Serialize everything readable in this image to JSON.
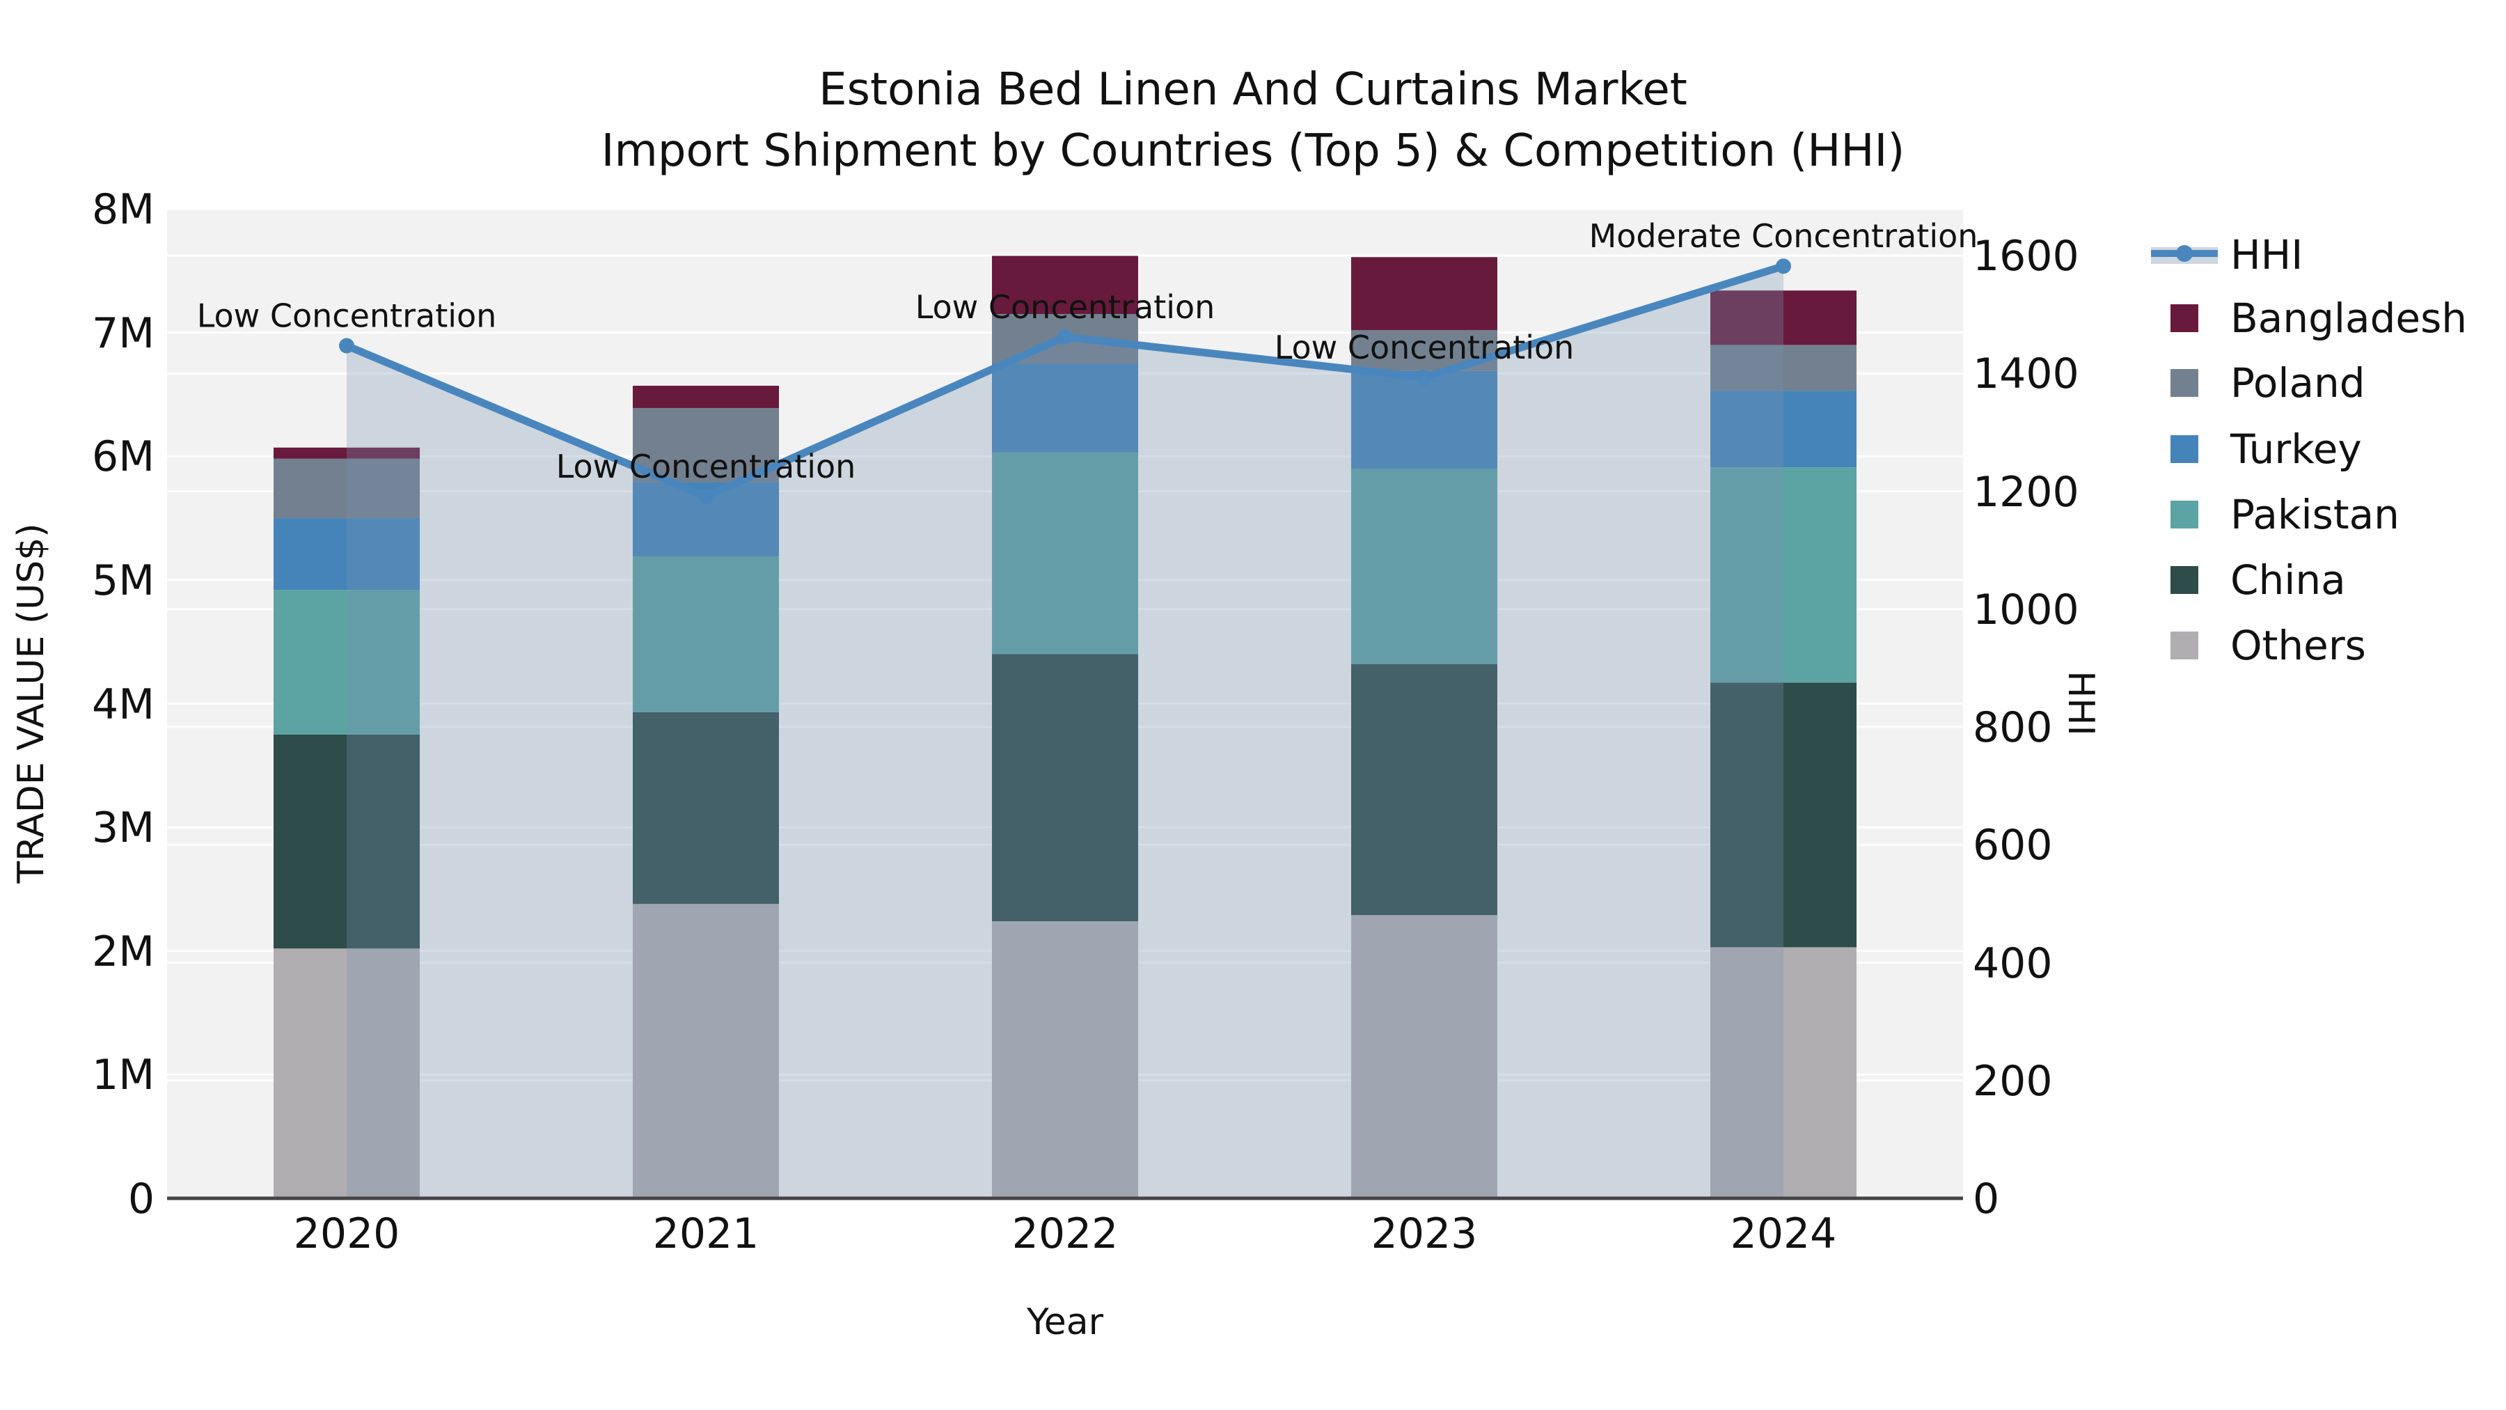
{
  "title": {
    "line1": "Estonia Bed Linen And Curtains Market",
    "line2": "Import Shipment by Countries (Top 5) & Competition (HHI)"
  },
  "chart_data": {
    "type": "bar",
    "subtype": "stacked-bar-with-line-overlay",
    "title": "Estonia Bed Linen And Curtains Market\nImport Shipment by Countries (Top 5) & Competition (HHI)",
    "categories": [
      "2020",
      "2021",
      "2022",
      "2023",
      "2024"
    ],
    "value_unit": "M US$",
    "stack_order": "bottom-to-top",
    "series": [
      {
        "name": "Others",
        "color": "#B0AEB0",
        "values": [
          2.02,
          2.38,
          2.24,
          2.29,
          2.03
        ]
      },
      {
        "name": "China",
        "color": "#2E4C49",
        "values": [
          1.73,
          1.55,
          2.16,
          2.03,
          2.14
        ]
      },
      {
        "name": "Pakistan",
        "color": "#5CA3A4",
        "values": [
          1.17,
          1.26,
          1.63,
          1.58,
          1.74
        ]
      },
      {
        "name": "Turkey",
        "color": "#4584B8",
        "values": [
          0.58,
          0.6,
          0.72,
          0.79,
          0.62
        ]
      },
      {
        "name": "Poland",
        "color": "#73808F",
        "values": [
          0.48,
          0.6,
          0.4,
          0.33,
          0.37
        ]
      },
      {
        "name": "Bangladesh",
        "color": "#681A3C",
        "values": [
          0.09,
          0.18,
          0.47,
          0.59,
          0.44
        ]
      }
    ],
    "bar_totals": [
      6.07,
      6.57,
      7.62,
      7.61,
      7.34
    ],
    "line_series": {
      "name": "HHI",
      "color": "#4A86BE",
      "fill_color": "rgba(120,145,180,0.30)",
      "values": [
        1447,
        1191,
        1462,
        1393,
        1582
      ]
    },
    "annotations": [
      "Low Concentration",
      "Low Concentration",
      "Low Concentration",
      "Low Concentration",
      "Moderate Concentration"
    ],
    "xlabel": "Year",
    "ylabel_left": "TRADE VALUE (US$)",
    "ylabel_right": "HHI",
    "yticks_left": [
      "0",
      "1M",
      "2M",
      "3M",
      "4M",
      "5M",
      "6M",
      "7M",
      "8M"
    ],
    "yticks_right": [
      "0",
      "200",
      "400",
      "600",
      "800",
      "1000",
      "1200",
      "1400",
      "1600"
    ],
    "ylim_left": [
      0,
      8000000
    ],
    "ylim_right": [
      0,
      1600
    ],
    "grid": true,
    "grid_color": "rgba(255,255,255,0.9)",
    "plot_bg": "#F2F2F2",
    "legend_position": "right",
    "legend": [
      "HHI",
      "Bangladesh",
      "Poland",
      "Turkey",
      "Pakistan",
      "China",
      "Others"
    ]
  }
}
